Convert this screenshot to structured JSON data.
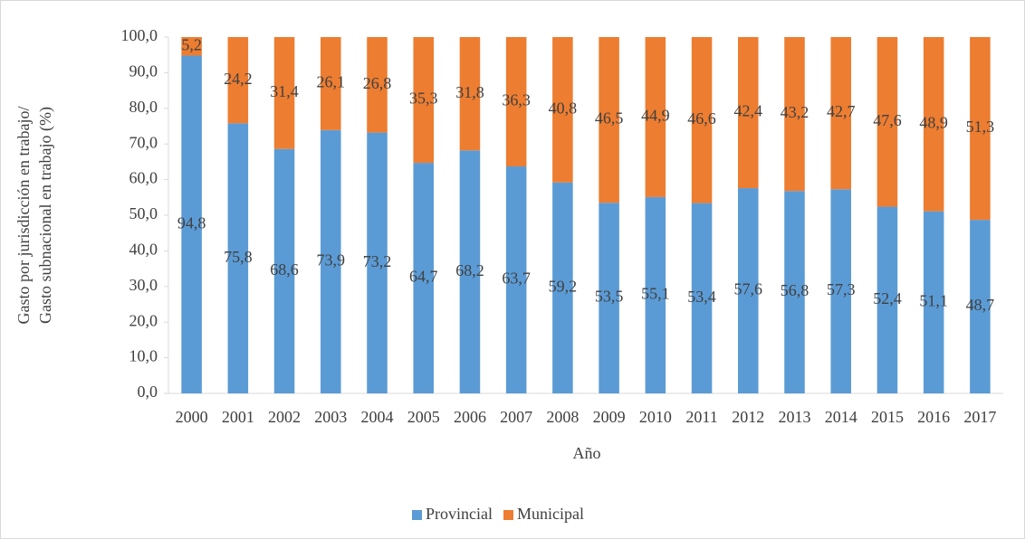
{
  "chart_data": {
    "type": "stacked_bar",
    "ylabel": [
      "Gasto por jurisdicción en trabajo/",
      "Gasto  subnacional en trabajo (%)"
    ],
    "xlabel": "Año",
    "categories": [
      "2000",
      "2001",
      "2002",
      "2003",
      "2004",
      "2005",
      "2006",
      "2007",
      "2008",
      "2009",
      "2010",
      "2011",
      "2012",
      "2013",
      "2014",
      "2015",
      "2016",
      "2017"
    ],
    "series": [
      {
        "name": "Provincial",
        "color": "#5b9bd5",
        "values": [
          94.8,
          75.8,
          68.6,
          73.9,
          73.2,
          64.7,
          68.2,
          63.7,
          59.2,
          53.5,
          55.1,
          53.4,
          57.6,
          56.8,
          57.3,
          52.4,
          51.1,
          48.7
        ],
        "value_labels": [
          "94,8",
          "75,8",
          "68,6",
          "73,9",
          "73,2",
          "64,7",
          "68,2",
          "63,7",
          "59,2",
          "53,5",
          "55,1",
          "53,4",
          "57,6",
          "56,8",
          "57,3",
          "52,4",
          "51,1",
          "48,7"
        ]
      },
      {
        "name": "Municipal",
        "color": "#ed7d31",
        "values": [
          5.2,
          24.2,
          31.4,
          26.1,
          26.8,
          35.3,
          31.8,
          36.3,
          40.8,
          46.5,
          44.9,
          46.6,
          42.4,
          43.2,
          42.7,
          47.6,
          48.9,
          51.3
        ],
        "value_labels": [
          "5,2",
          "24,2",
          "31,4",
          "26,1",
          "26,8",
          "35,3",
          "31,8",
          "36,3",
          "40,8",
          "46,5",
          "44,9",
          "46,6",
          "42,4",
          "43,2",
          "42,7",
          "47,6",
          "48,9",
          "51,3"
        ]
      }
    ],
    "ylim": [
      0,
      100
    ],
    "yticks": [
      {
        "value": 0,
        "label": "0,0"
      },
      {
        "value": 10,
        "label": "10,0"
      },
      {
        "value": 20,
        "label": "20,0"
      },
      {
        "value": 30,
        "label": "30,0"
      },
      {
        "value": 40,
        "label": "40,0"
      },
      {
        "value": 50,
        "label": "50,0"
      },
      {
        "value": 60,
        "label": "60,0"
      },
      {
        "value": 70,
        "label": "70,0"
      },
      {
        "value": 80,
        "label": "80,0"
      },
      {
        "value": 90,
        "label": "90,0"
      },
      {
        "value": 100,
        "label": "100,0"
      }
    ],
    "legend": "bottom"
  }
}
